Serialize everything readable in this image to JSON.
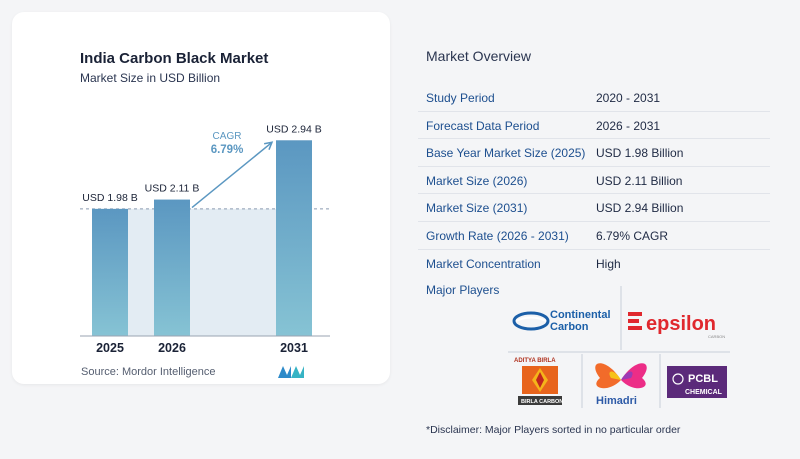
{
  "chart_data": {
    "type": "bar",
    "title": "India Carbon Black Market",
    "subtitle": "Market Size in USD Billion",
    "categories": [
      "2025",
      "2026",
      "2031"
    ],
    "values": [
      1.98,
      2.11,
      2.94
    ],
    "data_labels": [
      "USD 1.98 B",
      "USD 2.11 B",
      "USD 2.94 B"
    ],
    "ylim": [
      0,
      3.0
    ],
    "cagr_label": "CAGR",
    "cagr_value": "6.79%",
    "grid": false,
    "bar_color": "#5b97c1",
    "bar_color_light": "#86c3d4",
    "band_color": "#e3ecf3"
  },
  "source": "Source:  Mordor Intelligence",
  "overview": {
    "title": "Market Overview",
    "rows": [
      {
        "label": "Study Period",
        "value": "2020 - 2031"
      },
      {
        "label": "Forecast Data Period",
        "value": "2026 - 2031"
      },
      {
        "label": "Base Year Market Size (2025)",
        "value": "USD 1.98 Billion"
      },
      {
        "label": "Market Size (2026)",
        "value": "USD 2.11 Billion"
      },
      {
        "label": "Market Size (2031)",
        "value": "USD 2.94 Billion"
      },
      {
        "label": "Growth Rate (2026 - 2031)",
        "value": "6.79% CAGR"
      },
      {
        "label": "Market Concentration",
        "value": "High"
      }
    ]
  },
  "major_players": {
    "title": "Major Players",
    "logos": {
      "continental_top": "Continental",
      "continental_bottom": "Carbon",
      "epsilon_main": "epsilon",
      "epsilon_sub": "CARBON",
      "birla_top": "ADITYA BIRLA",
      "birla_bottom": "BIRLA CARBON",
      "himadri": "Himadri",
      "pcbl_top": "PCBL",
      "pcbl_bottom": "CHEMICAL"
    }
  },
  "disclaimer": "*Disclaimer: Major Players sorted in no particular order"
}
